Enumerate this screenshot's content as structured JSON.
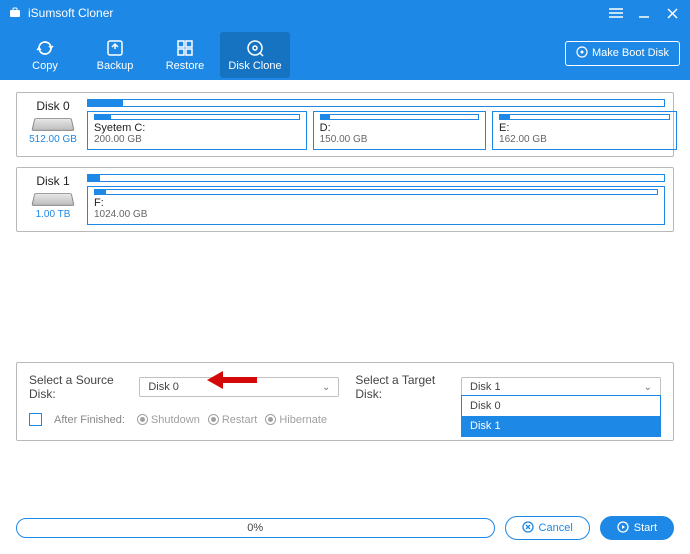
{
  "app": {
    "name": "iSumsoft Cloner"
  },
  "toolbar": {
    "copy": "Copy",
    "backup": "Backup",
    "restore": "Restore",
    "diskclone": "Disk Clone",
    "makeBoot": "Make Boot Disk",
    "active": "diskclone"
  },
  "disks": [
    {
      "name": "Disk 0",
      "size": "512.00 GB",
      "usageBarFillPct": 6,
      "partitions": [
        {
          "label": "Syetem C:",
          "size": "200.00 GB",
          "flexBasisPct": 38,
          "fillPct": 8
        },
        {
          "label": "D:",
          "size": "150.00 GB",
          "flexBasisPct": 30,
          "fillPct": 6
        },
        {
          "label": "E:",
          "size": "162.00 GB",
          "flexBasisPct": 32,
          "fillPct": 6
        }
      ]
    },
    {
      "name": "Disk 1",
      "size": "1.00 TB",
      "usageBarFillPct": 2,
      "partitions": [
        {
          "label": "F:",
          "size": "1024.00 GB",
          "flexBasisPct": 100,
          "fillPct": 2
        }
      ]
    }
  ],
  "selectPanel": {
    "sourceLabel": "Select a Source Disk:",
    "sourceValue": "Disk 0",
    "targetLabel": "Select a Target Disk:",
    "targetValue": "Disk 1",
    "targetOptions": [
      "Disk 0",
      "Disk 1"
    ],
    "targetSelectedIndex": 1,
    "afterLabel": "After Finished:",
    "afterOptions": [
      "Shutdown",
      "Restart",
      "Hibernate"
    ]
  },
  "footer": {
    "progressText": "0%",
    "cancel": "Cancel",
    "start": "Start"
  },
  "colors": {
    "accent": "#1d88e5",
    "arrow": "#d40808"
  }
}
